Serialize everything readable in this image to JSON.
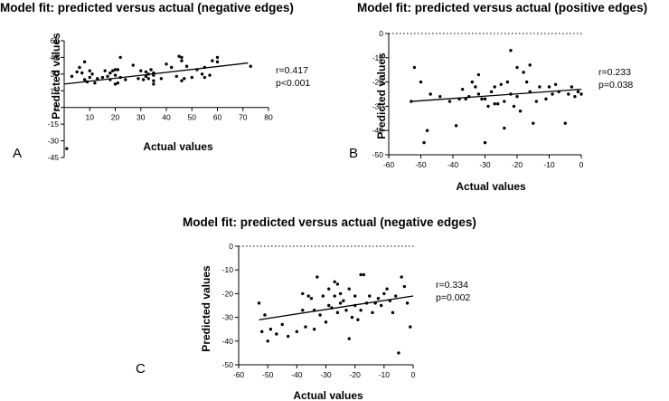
{
  "chart_data": [
    {
      "type": "scatter",
      "panel": "A",
      "title": "Model fit: predicted versus actual (negative edges)",
      "xlabel": "Actual values",
      "ylabel": "Predicted values",
      "xlim": [
        0,
        80
      ],
      "ylim": [
        -45,
        60
      ],
      "xticks": [
        10,
        20,
        30,
        40,
        50,
        60,
        70,
        80
      ],
      "yticks": [
        -45,
        -30,
        -15,
        0,
        15,
        30,
        45,
        60
      ],
      "stats": [
        "r=0.417",
        "p<0.001"
      ],
      "fit_line": [
        [
          0,
          21
        ],
        [
          72,
          40
        ]
      ],
      "reference_line": false,
      "points": [
        [
          1,
          -37
        ],
        [
          3,
          28
        ],
        [
          5,
          32
        ],
        [
          6,
          36
        ],
        [
          7,
          31
        ],
        [
          8,
          25
        ],
        [
          8,
          41
        ],
        [
          9,
          23
        ],
        [
          10,
          27
        ],
        [
          10,
          33
        ],
        [
          11,
          30
        ],
        [
          12,
          22
        ],
        [
          13,
          26
        ],
        [
          15,
          27
        ],
        [
          16,
          33
        ],
        [
          17,
          28
        ],
        [
          18,
          25
        ],
        [
          18,
          31
        ],
        [
          19,
          33
        ],
        [
          20,
          21
        ],
        [
          20,
          29
        ],
        [
          20,
          34
        ],
        [
          21,
          34
        ],
        [
          21,
          22
        ],
        [
          22,
          27
        ],
        [
          22,
          45
        ],
        [
          24,
          25
        ],
        [
          27,
          38
        ],
        [
          29,
          26
        ],
        [
          30,
          33
        ],
        [
          31,
          25
        ],
        [
          32,
          28
        ],
        [
          32,
          32
        ],
        [
          33,
          26
        ],
        [
          33,
          30
        ],
        [
          34,
          34
        ],
        [
          35,
          21
        ],
        [
          35,
          24
        ],
        [
          35,
          29
        ],
        [
          35,
          31
        ],
        [
          38,
          26
        ],
        [
          40,
          39
        ],
        [
          42,
          36
        ],
        [
          44,
          28
        ],
        [
          45,
          46
        ],
        [
          46,
          42
        ],
        [
          46,
          45
        ],
        [
          46,
          24
        ],
        [
          47,
          26
        ],
        [
          48,
          37
        ],
        [
          50,
          27
        ],
        [
          52,
          34
        ],
        [
          54,
          30
        ],
        [
          55,
          27
        ],
        [
          55,
          36
        ],
        [
          57,
          29
        ],
        [
          58,
          42
        ],
        [
          60,
          41
        ],
        [
          60,
          45
        ],
        [
          73,
          37
        ]
      ]
    },
    {
      "type": "scatter",
      "panel": "B",
      "title": "Model fit: predicted versus actual (positive edges)",
      "xlabel": "Actual values",
      "ylabel": "Predicted values",
      "xlim": [
        -60,
        0
      ],
      "ylim": [
        -50,
        0
      ],
      "xticks": [
        -60,
        -50,
        -40,
        -30,
        -20,
        -10,
        0
      ],
      "yticks": [
        -50,
        -40,
        -30,
        -20,
        -10,
        0
      ],
      "stats": [
        "r=0.233",
        "p=0.038"
      ],
      "fit_line": [
        [
          -53,
          -28
        ],
        [
          0,
          -23
        ]
      ],
      "reference_line": true,
      "points": [
        [
          -53,
          -28
        ],
        [
          -52,
          -14
        ],
        [
          -50,
          -20
        ],
        [
          -49,
          -45
        ],
        [
          -48,
          -40
        ],
        [
          -47,
          -25
        ],
        [
          -44,
          -26
        ],
        [
          -41,
          -28
        ],
        [
          -39,
          -38
        ],
        [
          -38,
          -27
        ],
        [
          -37,
          -23
        ],
        [
          -36,
          -27
        ],
        [
          -35,
          -26
        ],
        [
          -34,
          -20
        ],
        [
          -33,
          -22
        ],
        [
          -32,
          -17
        ],
        [
          -32,
          -25
        ],
        [
          -31,
          -27
        ],
        [
          -30,
          -45
        ],
        [
          -30,
          -27
        ],
        [
          -29,
          -30
        ],
        [
          -28,
          -24
        ],
        [
          -27,
          -29
        ],
        [
          -27,
          -22
        ],
        [
          -26,
          -29
        ],
        [
          -25,
          -21
        ],
        [
          -24,
          -39
        ],
        [
          -24,
          -28
        ],
        [
          -23,
          -20
        ],
        [
          -22,
          -7
        ],
        [
          -22,
          -25
        ],
        [
          -21,
          -30
        ],
        [
          -20,
          -26
        ],
        [
          -20,
          -14
        ],
        [
          -19,
          -32
        ],
        [
          -18,
          -16
        ],
        [
          -17,
          -20
        ],
        [
          -16,
          -13
        ],
        [
          -16,
          -24
        ],
        [
          -15,
          -37
        ],
        [
          -14,
          -28
        ],
        [
          -13,
          -22
        ],
        [
          -11,
          -27
        ],
        [
          -10,
          -22
        ],
        [
          -9,
          -25
        ],
        [
          -8,
          -21
        ],
        [
          -7,
          -24
        ],
        [
          -5,
          -37
        ],
        [
          -4,
          -25
        ],
        [
          -3,
          -22
        ],
        [
          -2,
          -26
        ],
        [
          -1,
          -24
        ],
        [
          0,
          -25
        ]
      ]
    },
    {
      "type": "scatter",
      "panel": "C",
      "title": "Model fit: predicted versus actual (negative edges)",
      "xlabel": "Actual values",
      "ylabel": "Predicted values",
      "xlim": [
        -60,
        0
      ],
      "ylim": [
        -50,
        0
      ],
      "xticks": [
        -60,
        -50,
        -40,
        -30,
        -20,
        -10,
        0
      ],
      "yticks": [
        -50,
        -40,
        -30,
        -20,
        -10,
        0
      ],
      "stats": [
        "r=0.334",
        "p=0.002"
      ],
      "fit_line": [
        [
          -53,
          -31
        ],
        [
          0,
          -21
        ]
      ],
      "reference_line": true,
      "points": [
        [
          -53,
          -24
        ],
        [
          -52,
          -36
        ],
        [
          -51,
          -29
        ],
        [
          -50,
          -40
        ],
        [
          -49,
          -35
        ],
        [
          -47,
          -37
        ],
        [
          -45,
          -33
        ],
        [
          -43,
          -38
        ],
        [
          -40,
          -36
        ],
        [
          -38,
          -27
        ],
        [
          -38,
          -20
        ],
        [
          -37,
          -34
        ],
        [
          -36,
          -21
        ],
        [
          -35,
          -22
        ],
        [
          -34,
          -27
        ],
        [
          -34,
          -35
        ],
        [
          -33,
          -13
        ],
        [
          -32,
          -29
        ],
        [
          -31,
          -21
        ],
        [
          -30,
          -32
        ],
        [
          -29,
          -18
        ],
        [
          -29,
          -25
        ],
        [
          -28,
          -26
        ],
        [
          -27,
          -21
        ],
        [
          -27,
          -15
        ],
        [
          -26,
          -16
        ],
        [
          -26,
          -28
        ],
        [
          -25,
          -24
        ],
        [
          -25,
          -20
        ],
        [
          -24,
          -23
        ],
        [
          -23,
          -27
        ],
        [
          -22,
          -18
        ],
        [
          -22,
          -39
        ],
        [
          -21,
          -30
        ],
        [
          -20,
          -21
        ],
        [
          -20,
          -25
        ],
        [
          -19,
          -31
        ],
        [
          -18,
          -27
        ],
        [
          -18,
          -12
        ],
        [
          -17,
          -12
        ],
        [
          -16,
          -24
        ],
        [
          -15,
          -21
        ],
        [
          -14,
          -28
        ],
        [
          -13,
          -24
        ],
        [
          -12,
          -22
        ],
        [
          -11,
          -25
        ],
        [
          -10,
          -20
        ],
        [
          -9,
          -18
        ],
        [
          -8,
          -23
        ],
        [
          -7,
          -28
        ],
        [
          -6,
          -21
        ],
        [
          -5,
          -45
        ],
        [
          -4,
          -13
        ],
        [
          -3,
          -17
        ],
        [
          -2,
          -24
        ],
        [
          -1,
          -34
        ]
      ]
    }
  ]
}
